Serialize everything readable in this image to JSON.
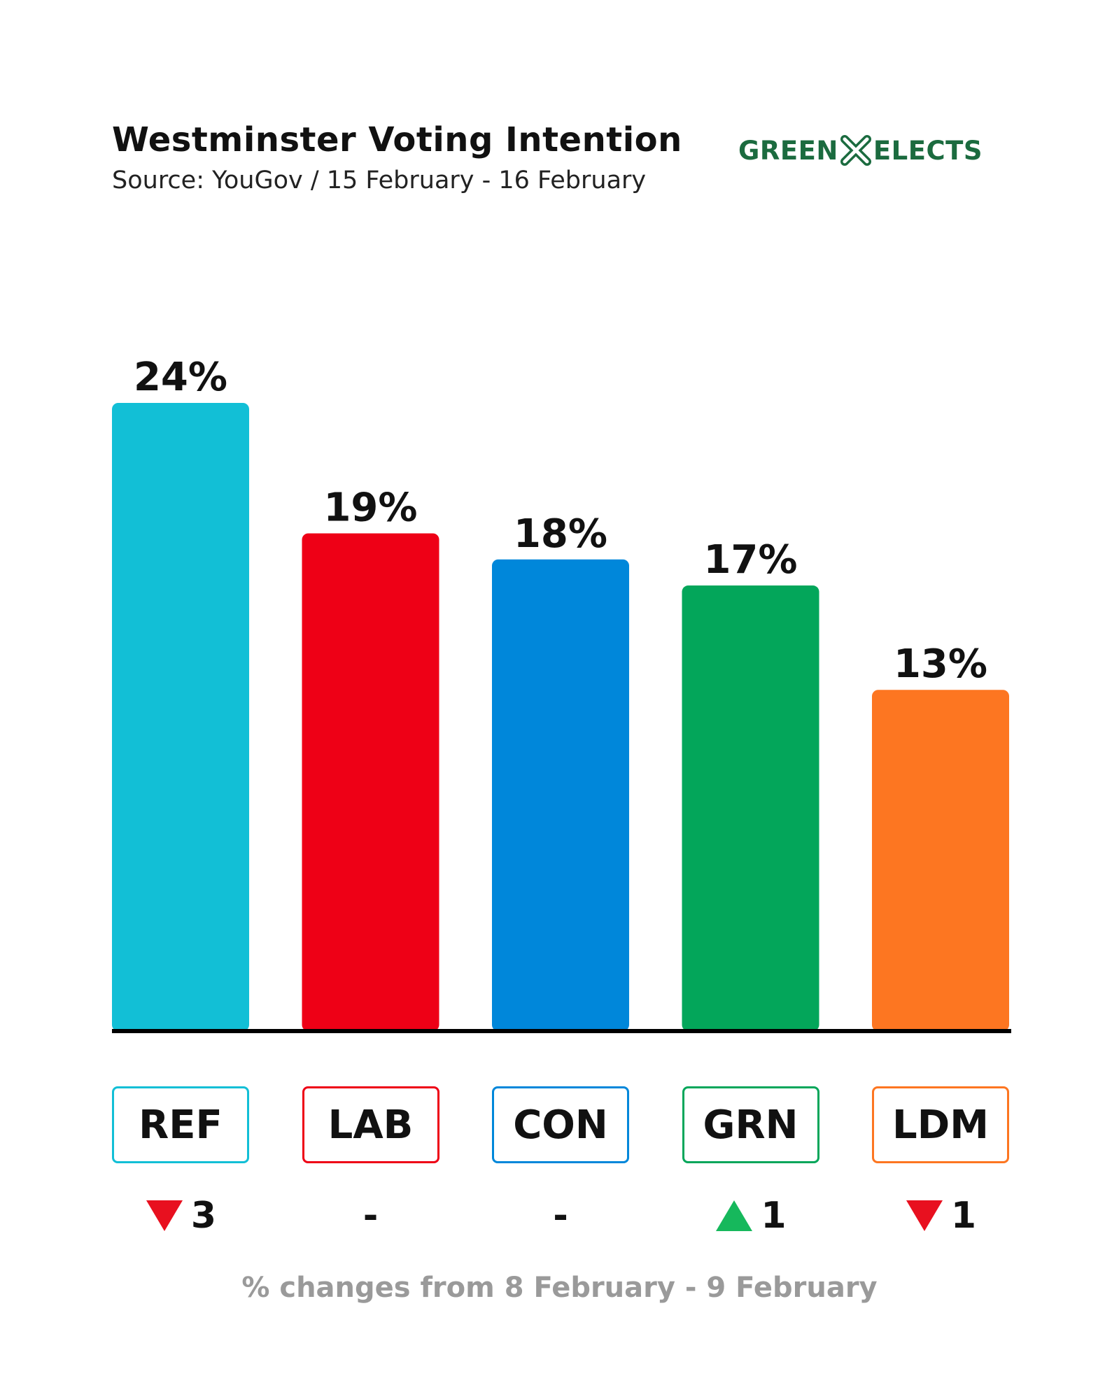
{
  "header": {
    "title": "Westminster Voting Intention",
    "subtitle": "Source: YouGov / 15 February - 16 February",
    "logo_left": "GREEN",
    "logo_right": "ELECTS",
    "logo_color": "#1b6b3f"
  },
  "chart_data": {
    "type": "bar",
    "title": "Westminster Voting Intention",
    "categories": [
      "REF",
      "LAB",
      "CON",
      "GRN",
      "LDM"
    ],
    "values": [
      24,
      19,
      18,
      17,
      13
    ],
    "value_labels": [
      "24%",
      "19%",
      "18%",
      "17%",
      "13%"
    ],
    "colors": [
      "#12bfd6",
      "#ee0016",
      "#0087da",
      "#03a65a",
      "#fd7621"
    ],
    "changes": [
      {
        "direction": "down",
        "text": "3"
      },
      {
        "direction": "none",
        "text": "-"
      },
      {
        "direction": "none",
        "text": "-"
      },
      {
        "direction": "up",
        "text": "1"
      },
      {
        "direction": "down",
        "text": "1"
      }
    ],
    "change_colors": {
      "up": "#16b85c",
      "down": "#e8101f"
    },
    "ylim": [
      0,
      24
    ],
    "grid": false,
    "legend": "none"
  },
  "footnote": "% changes from 8 February - 9 February"
}
